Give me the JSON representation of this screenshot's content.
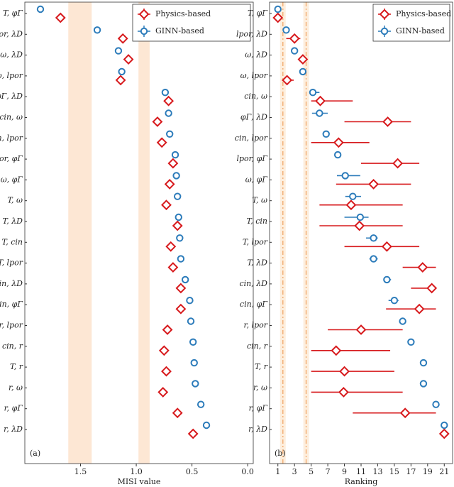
{
  "chart_data": [
    {
      "type": "dot",
      "panel_label": "(a)",
      "xlabel": "MISI value",
      "categories": [
        "T, φΓ",
        "lpor, λD",
        "ω, λD",
        "ω, lpor",
        "φΓ, λD",
        "cin, ω",
        "cin, lpor",
        "lpor, φΓ",
        "ω, φΓ",
        "T, ω",
        "T, λD",
        "T, cin",
        "T, lpor",
        "cin, λD",
        "cin, φΓ",
        "r, lpor",
        "cin, r",
        "T, r",
        "r, ω",
        "r, φΓ",
        "r, λD"
      ],
      "series": [
        {
          "name": "Physics-based",
          "color": "#d7191c",
          "marker": "diamond",
          "values": [
            1.68,
            1.12,
            1.07,
            1.14,
            0.71,
            0.81,
            0.77,
            0.67,
            0.7,
            0.73,
            0.63,
            0.69,
            0.67,
            0.6,
            0.6,
            0.72,
            0.75,
            0.73,
            0.76,
            0.63,
            0.49
          ]
        },
        {
          "name": "GINN-based",
          "color": "#2b7bba",
          "marker": "circle",
          "values": [
            1.86,
            1.35,
            1.16,
            1.13,
            0.74,
            0.71,
            0.7,
            0.65,
            0.64,
            0.63,
            0.62,
            0.61,
            0.6,
            0.56,
            0.52,
            0.51,
            0.49,
            0.48,
            0.47,
            0.42,
            0.37
          ]
        }
      ],
      "xlim": [
        2.0,
        -0.05
      ],
      "xticks": [
        1.5,
        {
          "value": 1,
          "label": "1.0"
        },
        0.5,
        {
          "value": 0,
          "label": "0.0"
        }
      ],
      "shaded_bands": [
        [
          1.61,
          1.4
        ],
        [
          0.98,
          0.88
        ]
      ],
      "legend": "top-right"
    },
    {
      "type": "dot",
      "panel_label": "(b)",
      "xlabel": "Ranking",
      "categories": [
        "T, φΓ",
        "lpor, λD",
        "ω, λD",
        "ω, lpor",
        "cin, ω",
        "φΓ, λD",
        "cin, lpor",
        "lpor, φΓ",
        "ω, φΓ",
        "T, ω",
        "T, cin",
        "T, lpor",
        "T, λD",
        "cin, λD",
        "cin, φΓ",
        "r, lpor",
        "cin, r",
        "T, r",
        "r, ω",
        "r, φΓ",
        "r, λD"
      ],
      "series": [
        {
          "name": "Physics-based",
          "color": "#d7191c",
          "marker": "diamond",
          "values": [
            1.0,
            3.0,
            4.0,
            2.1,
            6.1,
            14.2,
            8.3,
            15.4,
            12.5,
            9.8,
            10.8,
            14.1,
            18.4,
            19.5,
            18.0,
            11.0,
            8.0,
            9.0,
            8.9,
            16.3,
            21.0
          ],
          "lower": [
            null,
            2.0,
            null,
            1.5,
            5.0,
            9.0,
            5.0,
            11.0,
            8.0,
            6.0,
            6.0,
            9.0,
            16.0,
            17.0,
            14.0,
            7.0,
            5.0,
            5.0,
            5.0,
            10.0,
            null
          ],
          "upper": [
            null,
            3.7,
            null,
            2.9,
            10.0,
            17.0,
            12.0,
            18.0,
            17.0,
            16.0,
            16.0,
            18.0,
            20.0,
            20.0,
            20.0,
            16.0,
            14.5,
            15.0,
            16.0,
            20.0,
            null
          ]
        },
        {
          "name": "GINN-based",
          "color": "#2b7bba",
          "marker": "circle",
          "values": [
            1.0,
            2.0,
            3.0,
            4.0,
            5.2,
            6.0,
            6.8,
            8.2,
            9.1,
            10.0,
            10.9,
            12.5,
            12.5,
            14.1,
            15.0,
            16.0,
            17.0,
            18.5,
            18.5,
            20.0,
            21.0
          ],
          "lower": [
            null,
            null,
            null,
            null,
            4.8,
            5.1,
            6.4,
            null,
            8.1,
            9.1,
            9.0,
            11.6,
            12.0,
            13.8,
            14.3,
            null,
            null,
            18.2,
            null,
            null,
            null
          ],
          "upper": [
            null,
            null,
            null,
            null,
            6.0,
            7.0,
            7.1,
            10.0,
            10.9,
            11.0,
            11.9,
            13.0,
            13.0,
            14.6,
            15.5,
            null,
            null,
            18.8,
            null,
            null,
            null
          ]
        }
      ],
      "xlim": [
        0,
        22
      ],
      "xticks": [
        1,
        3,
        5,
        7,
        9,
        11,
        13,
        15,
        17,
        19,
        21
      ],
      "reference_lines": [
        1.6,
        4.4
      ],
      "legend": "top-right"
    }
  ]
}
